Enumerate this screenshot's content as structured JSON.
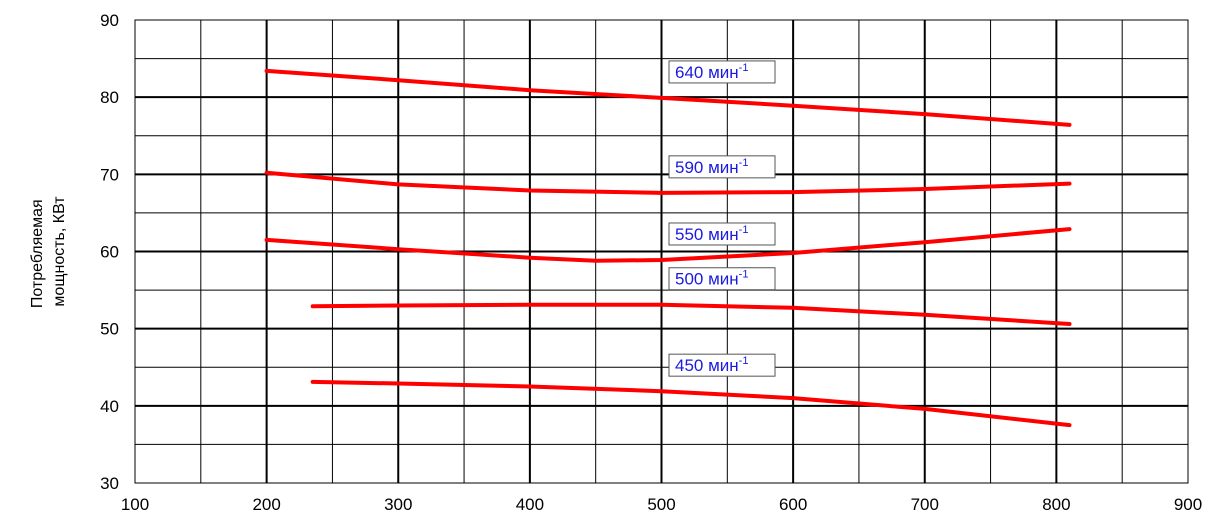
{
  "chart_data": {
    "type": "line",
    "title": "",
    "xlabel": "",
    "ylabel": [
      "Потребляемая",
      "мощность, КВт"
    ],
    "xlim": [
      100,
      900
    ],
    "ylim": [
      30,
      90
    ],
    "x_ticks": [
      "100",
      "200",
      "300",
      "400",
      "500",
      "600",
      "700",
      "800",
      "900"
    ],
    "y_ticks": [
      "30",
      "40",
      "50",
      "60",
      "70",
      "80",
      "90"
    ],
    "grid": true,
    "series_color": "#ff0000",
    "label_color": "#1a1adf",
    "series": [
      {
        "name": "640 мин-1",
        "label_text": "640 мин",
        "label_sup": "-1",
        "x": [
          200,
          300,
          400,
          500,
          600,
          700,
          810
        ],
        "y": [
          83.4,
          82.2,
          80.9,
          79.9,
          78.9,
          77.8,
          76.4
        ]
      },
      {
        "name": "590 мин-1",
        "label_text": "590 мин",
        "label_sup": "-1",
        "x": [
          200,
          300,
          400,
          500,
          600,
          700,
          810
        ],
        "y": [
          70.2,
          68.7,
          67.9,
          67.6,
          67.7,
          68.1,
          68.8
        ]
      },
      {
        "name": "550 мин-1",
        "label_text": "550 мин",
        "label_sup": "-1",
        "x": [
          200,
          300,
          400,
          450,
          500,
          600,
          700,
          810
        ],
        "y": [
          61.5,
          60.3,
          59.2,
          58.8,
          58.9,
          59.8,
          61.2,
          62.9
        ]
      },
      {
        "name": "500 мин-1",
        "label_text": "500 мин",
        "label_sup": "-1",
        "x": [
          235,
          300,
          400,
          500,
          600,
          700,
          810
        ],
        "y": [
          52.9,
          53.0,
          53.1,
          53.1,
          52.7,
          51.8,
          50.6
        ]
      },
      {
        "name": "450 мин-1",
        "label_text": "450 мин",
        "label_sup": "-1",
        "x": [
          235,
          300,
          400,
          500,
          600,
          700,
          810
        ],
        "y": [
          43.1,
          42.9,
          42.5,
          41.9,
          41.0,
          39.6,
          37.5
        ]
      }
    ]
  }
}
